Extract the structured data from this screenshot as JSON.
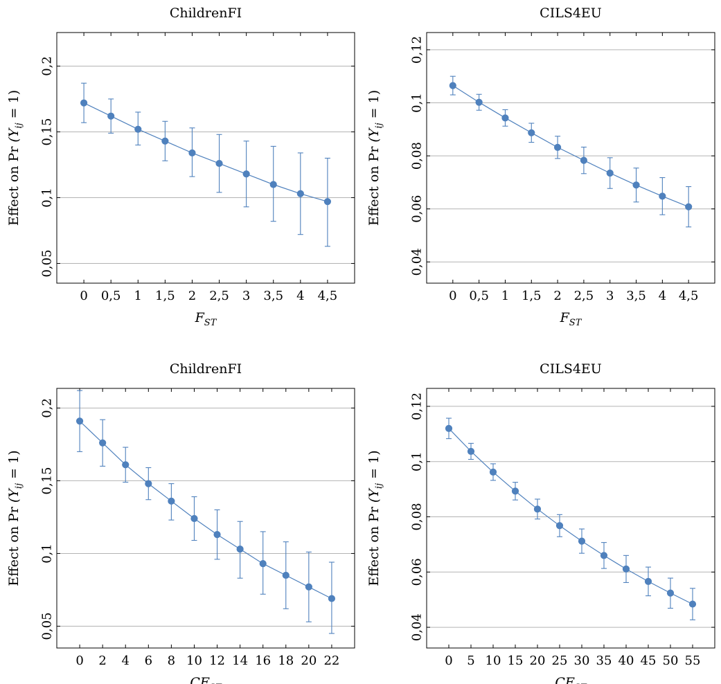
{
  "colors": {
    "series": "#4f81bd",
    "grid": "#b3b3b3",
    "axis": "#000000"
  },
  "chart_data": [
    {
      "type": "line",
      "title": "ChildrenFI",
      "xlabel": "F",
      "xlabel_sub": "ST",
      "ylabel": "Effect on Pr",
      "ylabel_var": "(Y",
      "ylabel_sub": "ij",
      "ylabel_tail": " = 1)",
      "x": [
        0,
        0.5,
        1,
        1.5,
        2,
        2.5,
        3,
        3.5,
        4,
        4.5
      ],
      "x_tick_labels": [
        "0",
        "0,5",
        "1",
        "1,5",
        "2",
        "2,5",
        "3",
        "3,5",
        "4",
        "4,5"
      ],
      "xlim": [
        -0.5,
        5.0
      ],
      "ylim": [
        0.035,
        0.2255
      ],
      "y_ticks": [
        0.05,
        0.1,
        0.15,
        0.2
      ],
      "y_tick_labels": [
        "0,05",
        "0,1",
        "0,15",
        "0,2"
      ],
      "grid": "horizontal",
      "series": [
        {
          "values": [
            0.172,
            0.162,
            0.152,
            0.143,
            0.134,
            0.126,
            0.118,
            0.11,
            0.103,
            0.097
          ],
          "lower": [
            0.157,
            0.149,
            0.14,
            0.128,
            0.116,
            0.104,
            0.093,
            0.082,
            0.072,
            0.063
          ],
          "upper": [
            0.187,
            0.175,
            0.165,
            0.158,
            0.153,
            0.148,
            0.143,
            0.139,
            0.134,
            0.13
          ]
        }
      ]
    },
    {
      "type": "line",
      "title": "CILS4EU",
      "xlabel": "F",
      "xlabel_sub": "ST",
      "ylabel": "Effect on Pr",
      "ylabel_var": "(Y",
      "ylabel_sub": "ij",
      "ylabel_tail": " = 1)",
      "x": [
        0,
        0.5,
        1,
        1.5,
        2,
        2.5,
        3,
        3.5,
        4,
        4.5
      ],
      "x_tick_labels": [
        "0",
        "0,5",
        "1",
        "1,5",
        "2",
        "2,5",
        "3",
        "3,5",
        "4",
        "4,5"
      ],
      "xlim": [
        -0.5,
        5.0
      ],
      "ylim": [
        0.032,
        0.1265
      ],
      "y_ticks": [
        0.04,
        0.06,
        0.08,
        0.1,
        0.12
      ],
      "y_tick_labels": [
        "0,04",
        "0,06",
        "0,08",
        "0,1",
        "0,12"
      ],
      "grid": "horizontal",
      "series": [
        {
          "values": [
            0.1065,
            0.1002,
            0.0943,
            0.0887,
            0.0832,
            0.0783,
            0.0735,
            0.069,
            0.0648,
            0.0608
          ],
          "lower": [
            0.103,
            0.0972,
            0.0912,
            0.0851,
            0.079,
            0.0733,
            0.0677,
            0.0626,
            0.0578,
            0.0532
          ],
          "upper": [
            0.11,
            0.1032,
            0.0974,
            0.0923,
            0.0874,
            0.0833,
            0.0793,
            0.0754,
            0.0718,
            0.0684
          ]
        }
      ]
    },
    {
      "type": "line",
      "title": "ChildrenFI",
      "xlabel": "CF",
      "xlabel_sub": "ST",
      "ylabel": "Effect on Pr",
      "ylabel_var": "(Y",
      "ylabel_sub": "ij",
      "ylabel_tail": " = 1)",
      "x": [
        0,
        2,
        4,
        6,
        8,
        10,
        12,
        14,
        16,
        18,
        20,
        22
      ],
      "x_tick_labels": [
        "0",
        "2",
        "4",
        "6",
        "8",
        "10",
        "12",
        "14",
        "16",
        "18",
        "20",
        "22"
      ],
      "xlim": [
        -2.0,
        24.0
      ],
      "ylim": [
        0.035,
        0.2135
      ],
      "y_ticks": [
        0.05,
        0.1,
        0.15,
        0.2
      ],
      "y_tick_labels": [
        "0,05",
        "0,1",
        "0,15",
        "0,2"
      ],
      "grid": "horizontal",
      "series": [
        {
          "values": [
            0.191,
            0.176,
            0.161,
            0.148,
            0.136,
            0.124,
            0.113,
            0.103,
            0.093,
            0.085,
            0.077,
            0.069
          ],
          "lower": [
            0.17,
            0.16,
            0.149,
            0.137,
            0.123,
            0.109,
            0.096,
            0.083,
            0.072,
            0.062,
            0.053,
            0.045
          ],
          "upper": [
            0.212,
            0.192,
            0.173,
            0.159,
            0.148,
            0.139,
            0.13,
            0.122,
            0.115,
            0.108,
            0.101,
            0.094
          ]
        }
      ]
    },
    {
      "type": "line",
      "title": "CILS4EU",
      "xlabel": "CF",
      "xlabel_sub": "ST",
      "ylabel": "Effect on Pr",
      "ylabel_var": "(Y",
      "ylabel_sub": "ij",
      "ylabel_tail": " = 1)",
      "x": [
        0,
        5,
        10,
        15,
        20,
        25,
        30,
        35,
        40,
        45,
        50,
        55
      ],
      "x_tick_labels": [
        "0",
        "5",
        "10",
        "15",
        "20",
        "25",
        "30",
        "35",
        "40",
        "45",
        "50",
        "55"
      ],
      "xlim": [
        -5.0,
        60.0
      ],
      "ylim": [
        0.0325,
        0.1265
      ],
      "y_ticks": [
        0.04,
        0.06,
        0.08,
        0.1,
        0.12
      ],
      "y_tick_labels": [
        "0,04",
        "0,06",
        "0,08",
        "0,1",
        "0,12"
      ],
      "grid": "horizontal",
      "series": [
        {
          "values": [
            0.112,
            0.1037,
            0.0962,
            0.0893,
            0.0828,
            0.0768,
            0.0712,
            0.066,
            0.0611,
            0.0566,
            0.0524,
            0.0484
          ],
          "lower": [
            0.1083,
            0.1008,
            0.0932,
            0.0861,
            0.0792,
            0.0728,
            0.0668,
            0.0613,
            0.0562,
            0.0514,
            0.0469,
            0.0427
          ],
          "upper": [
            0.1157,
            0.1066,
            0.0992,
            0.0925,
            0.0864,
            0.0808,
            0.0756,
            0.0707,
            0.066,
            0.0618,
            0.0578,
            0.0541
          ]
        }
      ]
    }
  ]
}
